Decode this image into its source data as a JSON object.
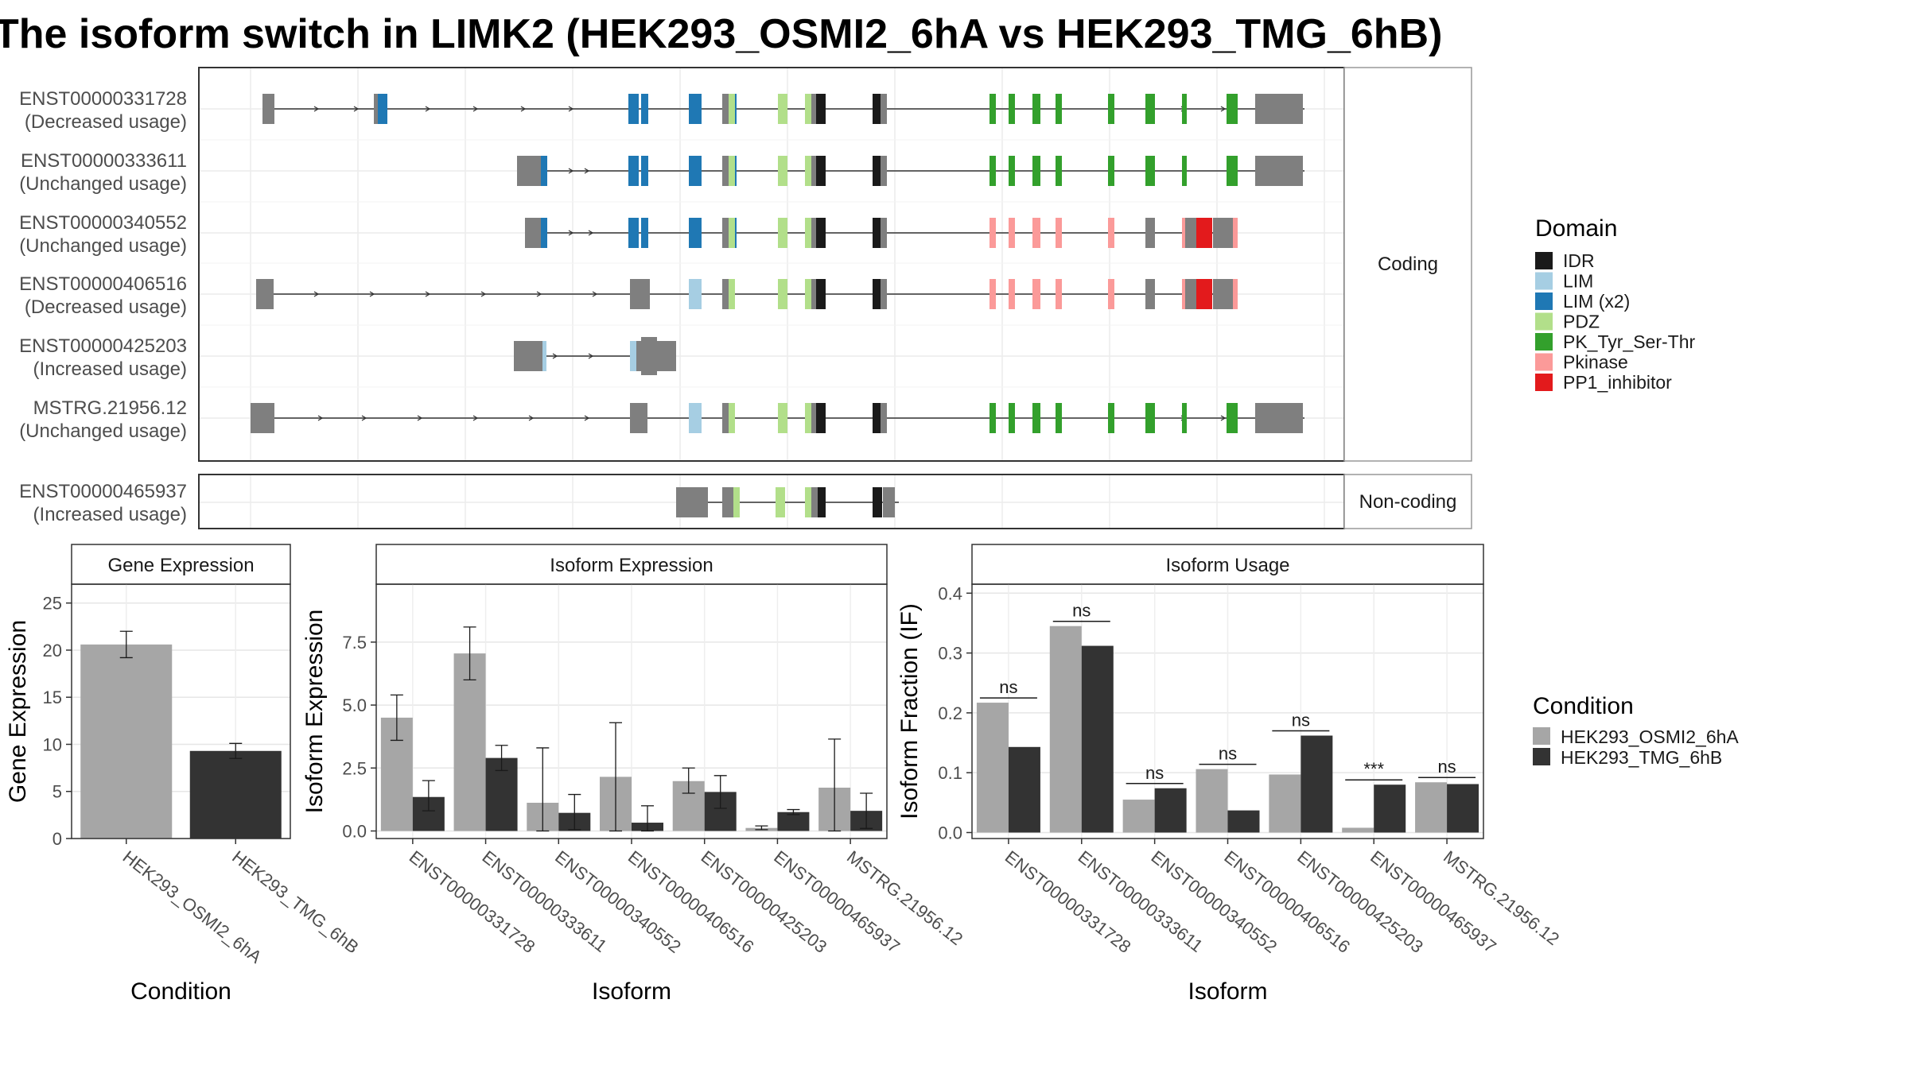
{
  "title": "The isoform switch in LIMK2 (HEK293_OSMI2_6hA vs HEK293_TMG_6hB)",
  "colors": {
    "IDR": "#1a1a1a",
    "LIM": "#a6cee3",
    "LIM (x2)": "#1f78b4",
    "PDZ": "#b2df8a",
    "PK_Tyr_Ser-Thr": "#33a02c",
    "Pkinase": "#fb9a99",
    "PP1_inhibitor": "#e31a1c",
    "exon": "#7f7f7f",
    "cond_A": "#a6a6a6",
    "cond_B": "#333333"
  },
  "chart_data": [
    {
      "type": "gene-structure",
      "panels": [
        "Coding",
        "Non-coding"
      ],
      "legend_title": "Domain",
      "legend": [
        "IDR",
        "LIM",
        "LIM (x2)",
        "PDZ",
        "PK_Tyr_Ser-Thr",
        "Pkinase",
        "PP1_inhibitor"
      ],
      "isoforms": [
        {
          "id": "ENST00000331728",
          "usage": "(Decreased usage)",
          "panel": "Coding"
        },
        {
          "id": "ENST00000333611",
          "usage": "(Unchanged usage)",
          "panel": "Coding"
        },
        {
          "id": "ENST00000340552",
          "usage": "(Unchanged usage)",
          "panel": "Coding"
        },
        {
          "id": "ENST00000406516",
          "usage": "(Decreased usage)",
          "panel": "Coding"
        },
        {
          "id": "ENST00000425203",
          "usage": "(Increased usage)",
          "panel": "Coding"
        },
        {
          "id": "MSTRG.21956.12",
          "usage": "(Unchanged usage)",
          "panel": "Coding"
        },
        {
          "id": "ENST00000465937",
          "usage": "(Increased usage)",
          "panel": "Non-coding"
        }
      ]
    },
    {
      "type": "bar",
      "title": "Gene Expression",
      "xlabel": "Condition",
      "ylabel": "Gene Expression",
      "categories": [
        "HEK293_OSMI2_6hA",
        "HEK293_TMG_6hB"
      ],
      "values": [
        20.6,
        9.3
      ],
      "errors": [
        [
          19.2,
          22.0
        ],
        [
          8.5,
          10.1
        ]
      ],
      "ylim": [
        0,
        27
      ],
      "yticks": [
        0,
        5,
        10,
        15,
        20,
        25
      ]
    },
    {
      "type": "bar",
      "title": "Isoform Expression",
      "xlabel": "Isoform",
      "ylabel": "Isoform Expression",
      "categories": [
        "ENST00000331728",
        "ENST00000333611",
        "ENST00000340552",
        "ENST00000406516",
        "ENST00000425203",
        "ENST00000465937",
        "MSTRG.21956.12"
      ],
      "series": [
        {
          "name": "HEK293_OSMI2_6hA",
          "values": [
            4.5,
            7.05,
            1.12,
            2.15,
            1.98,
            0.12,
            1.72
          ],
          "errors": [
            [
              3.6,
              5.4
            ],
            [
              6.0,
              8.1
            ],
            [
              0.0,
              3.3
            ],
            [
              0.0,
              4.3
            ],
            [
              1.5,
              2.5
            ],
            [
              0.05,
              0.2
            ],
            [
              0.0,
              3.65
            ]
          ]
        },
        {
          "name": "HEK293_TMG_6hB",
          "values": [
            1.35,
            2.9,
            0.72,
            0.33,
            1.55,
            0.75,
            0.8
          ],
          "errors": [
            [
              0.8,
              2.0
            ],
            [
              2.4,
              3.4
            ],
            [
              0.05,
              1.45
            ],
            [
              0.0,
              1.0
            ],
            [
              0.9,
              2.2
            ],
            [
              0.65,
              0.85
            ],
            [
              0.1,
              1.5
            ]
          ]
        }
      ],
      "ylim": [
        -0.3,
        9.8
      ],
      "yticks": [
        0.0,
        2.5,
        5.0,
        7.5
      ]
    },
    {
      "type": "bar",
      "title": "Isoform Usage",
      "xlabel": "Isoform",
      "ylabel": "Isoform Fraction (IF)",
      "categories": [
        "ENST00000331728",
        "ENST00000333611",
        "ENST00000340552",
        "ENST00000406516",
        "ENST00000425203",
        "ENST00000465937",
        "MSTRG.21956.12"
      ],
      "series": [
        {
          "name": "HEK293_OSMI2_6hA",
          "values": [
            0.217,
            0.345,
            0.055,
            0.106,
            0.097,
            0.008,
            0.084
          ]
        },
        {
          "name": "HEK293_TMG_6hB",
          "values": [
            0.143,
            0.312,
            0.074,
            0.037,
            0.162,
            0.08,
            0.081
          ]
        }
      ],
      "significance": [
        "ns",
        "ns",
        "ns",
        "ns",
        "ns",
        "***",
        "ns"
      ],
      "ylim": [
        -0.01,
        0.415
      ],
      "yticks": [
        0.0,
        0.1,
        0.2,
        0.3,
        0.4
      ]
    }
  ],
  "condition_legend": {
    "title": "Condition",
    "items": [
      "HEK293_OSMI2_6hA",
      "HEK293_TMG_6hB"
    ]
  }
}
